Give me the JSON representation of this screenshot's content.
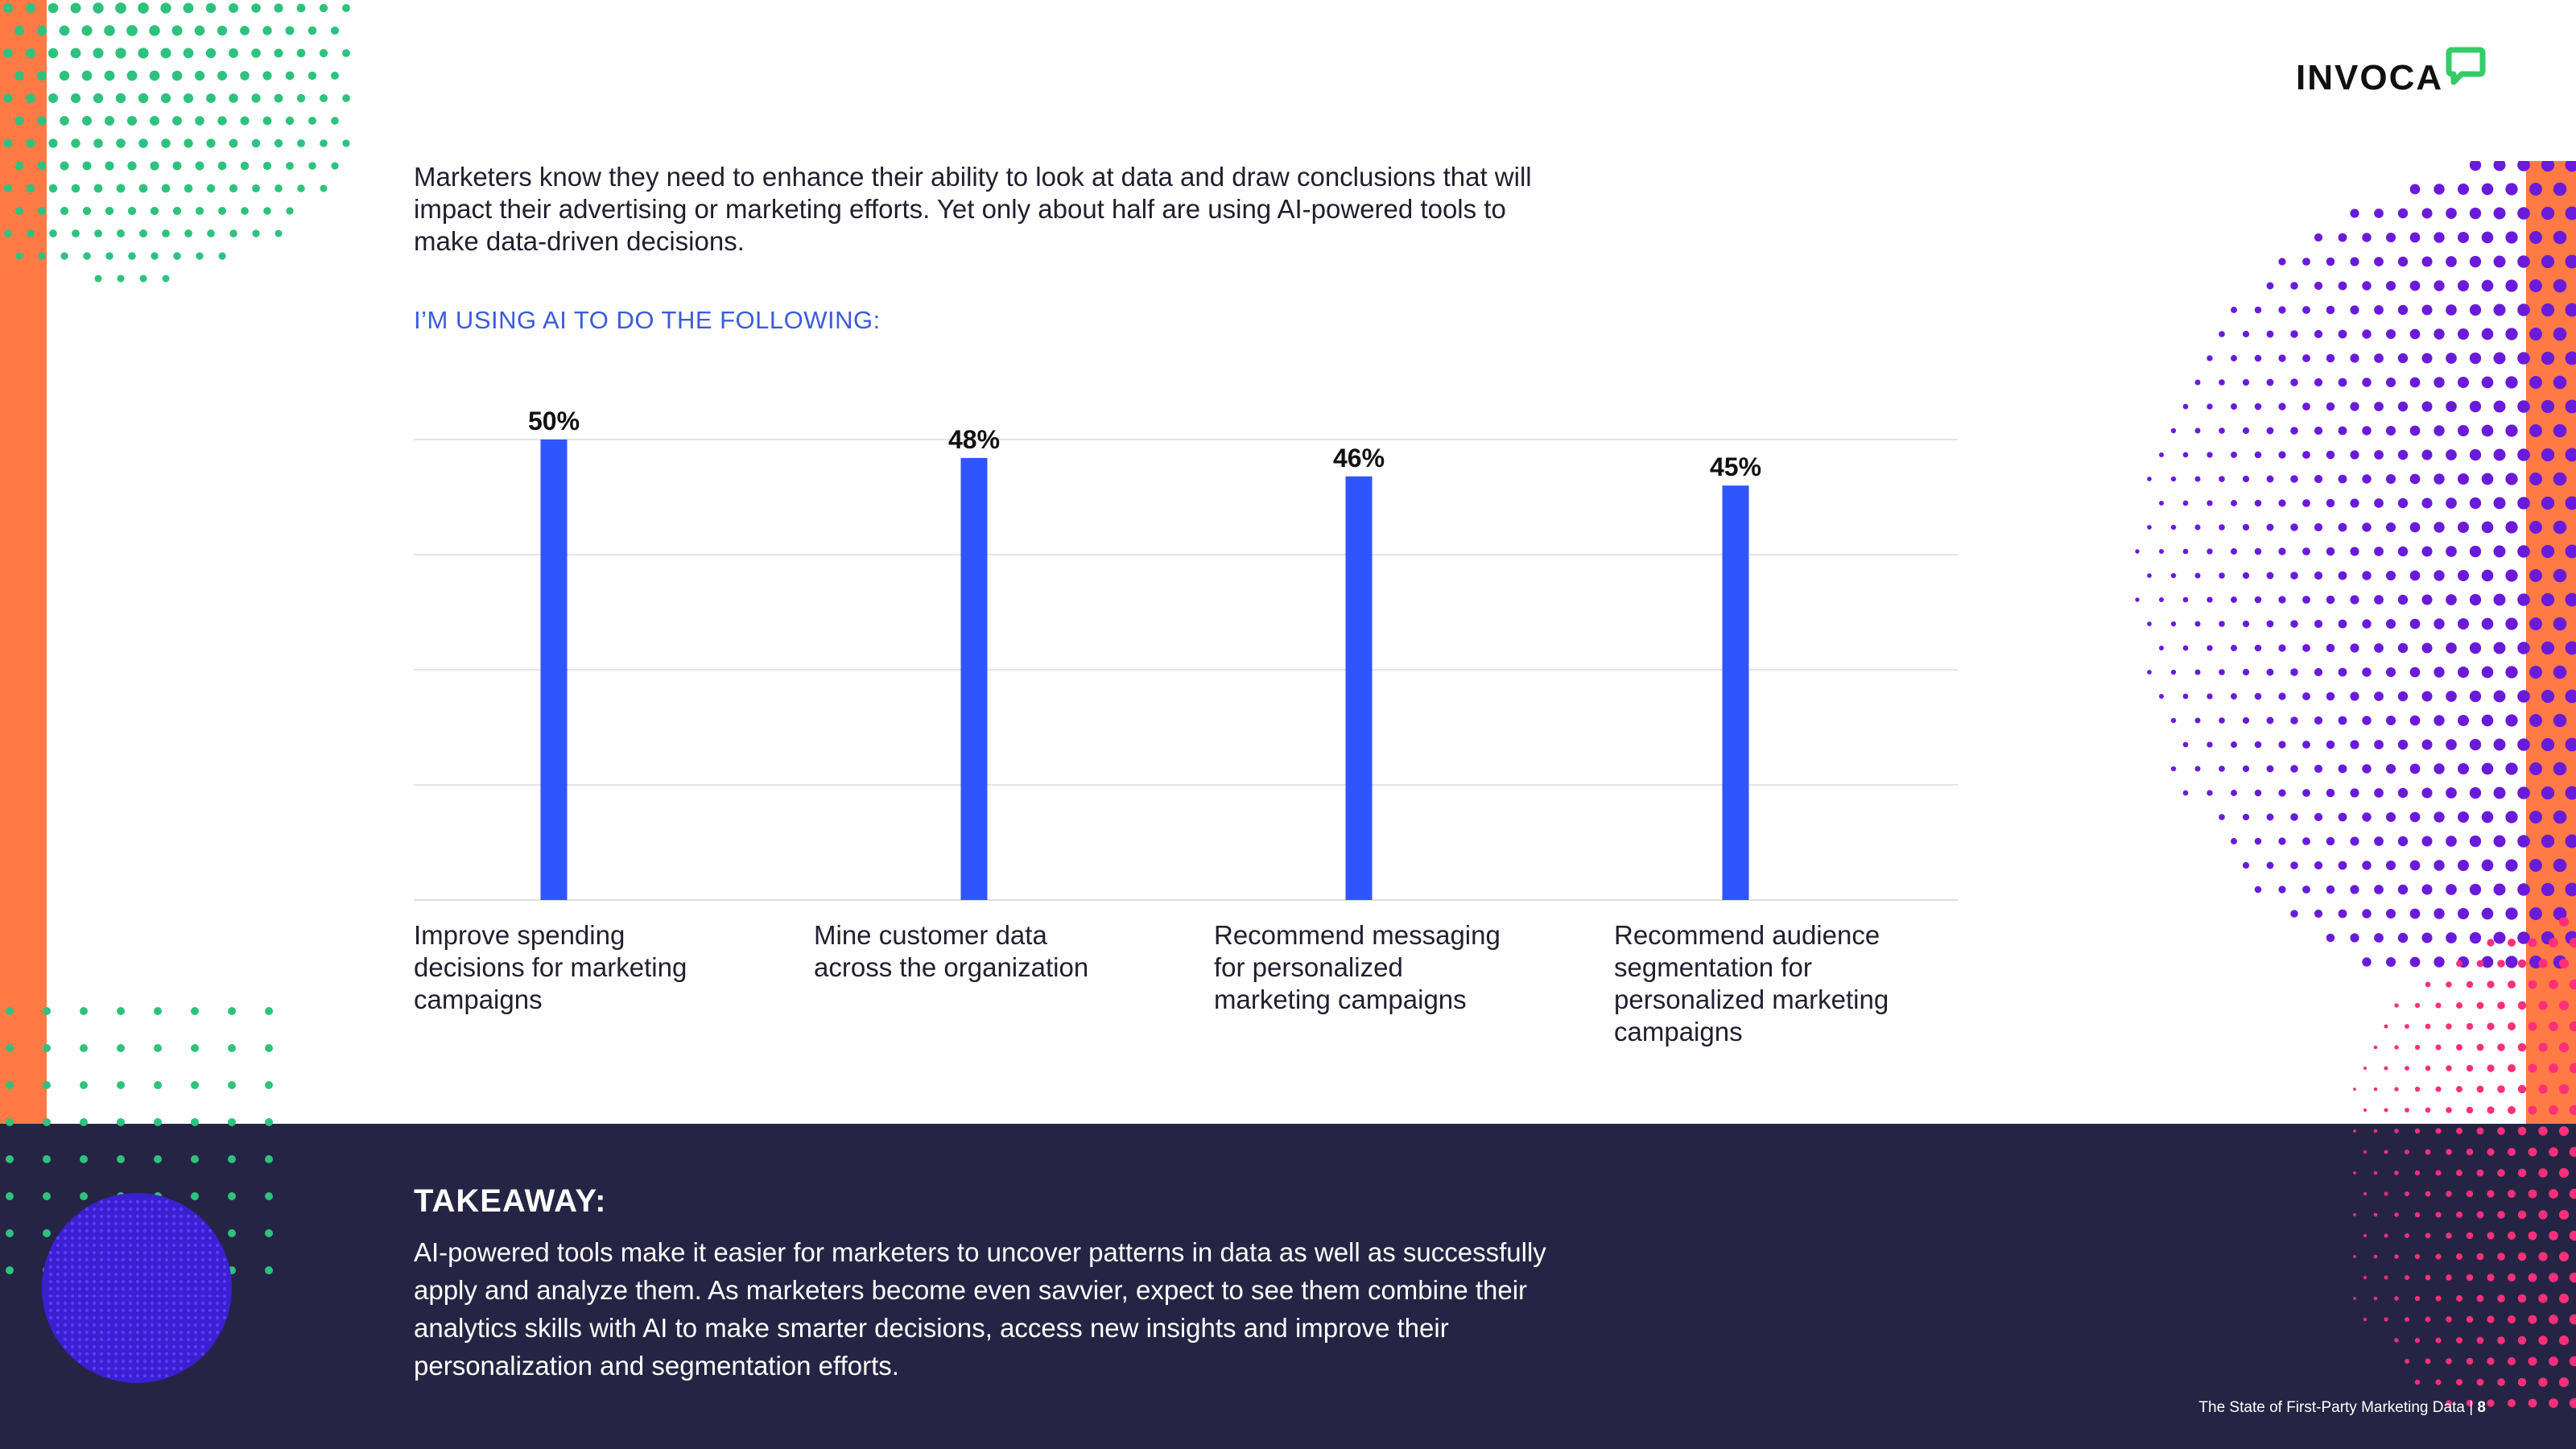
{
  "brand": {
    "logo_text": "INVOCA",
    "accent": "#33cc66"
  },
  "intro": {
    "text": "Marketers know they need to enhance their ability to look at data and draw conclusions that will impact their advertising or marketing efforts. Yet only about half are using AI-powered tools to make data-driven decisions."
  },
  "chart_subhead": "I’M USING AI TO DO THE FOLLOWING:",
  "chart_data": {
    "type": "bar",
    "categories": [
      "Improve spending decisions for marketing campaigns",
      "Mine customer data across the organization",
      "Recommend messaging for personalized marketing campaigns",
      "Recommend audience segmentation for personalized marketing campaigns"
    ],
    "category_lines": [
      [
        "Improve spending",
        "decisions for marketing",
        "campaigns"
      ],
      [
        "Mine customer data",
        "across the organization"
      ],
      [
        "Recommend messaging",
        "for personalized",
        "marketing campaigns"
      ],
      [
        "Recommend audience",
        "segmentation for",
        "personalized marketing",
        "campaigns"
      ]
    ],
    "values": [
      50,
      48,
      46,
      45
    ],
    "value_labels": [
      "50%",
      "48%",
      "46%",
      "45%"
    ],
    "ylim": [
      0,
      50
    ],
    "grid": true,
    "bar_color": "#2f55ff"
  },
  "takeaway": {
    "title": "TAKEAWAY:",
    "body": "AI-powered tools make it easier for marketers to uncover patterns in data as well as successfully apply and analyze them. As marketers become even savvier, expect to see them combine their analytics skills with AI to make smarter decisions, access new insights and improve their personalization and segmentation efforts."
  },
  "footer": {
    "doc_title": "The State of First-Party Marketing Data",
    "separator": "|",
    "page": "8"
  },
  "colors": {
    "orange": "#ff7a45",
    "navy": "#262444",
    "green_dots": "#2ec27e",
    "purple_dots": "#6a1bd9",
    "pink_dots": "#ff2f7a",
    "blue_text": "#3b5bdb"
  }
}
